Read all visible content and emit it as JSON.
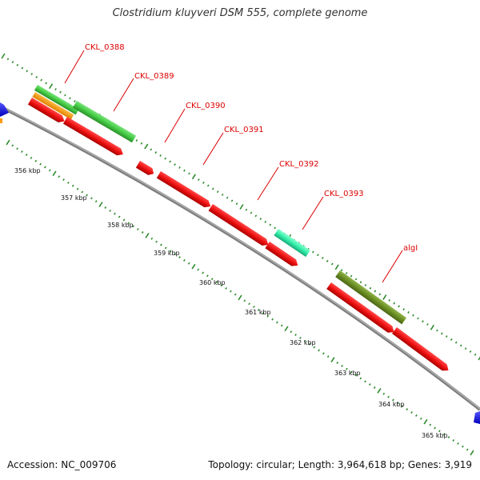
{
  "title": "Clostridium kluyveri DSM 555, complete genome",
  "footer": {
    "accession": "Accession: NC_009706",
    "summary": "Topology: circular; Length: 3,964,618 bp; Genes: 3,919"
  },
  "colors": {
    "backbone": "#8c8c8c",
    "ticks": "#2e8b2e",
    "label_text": "#dd0000",
    "label_line": "#dd0000",
    "cds": "#ee1111",
    "gene_green": "#44cc44",
    "gene_orange": "#ff9900",
    "gene_cyan": "#33eeaa",
    "gene_olive": "#6b8e23",
    "gene_blue": "#1111ee"
  },
  "scale_labels": [
    "356 kbp",
    "357 kbp",
    "358 kbp",
    "359 kbp",
    "360 kbp",
    "361 kbp",
    "362 kbp",
    "363 kbp",
    "364 kbp",
    "365 kbp"
  ],
  "gene_labels": [
    "CKL_0388",
    "CKL_0389",
    "CKL_0390",
    "CKL_0391",
    "CKL_0392",
    "CKL_0393",
    "algI"
  ]
}
